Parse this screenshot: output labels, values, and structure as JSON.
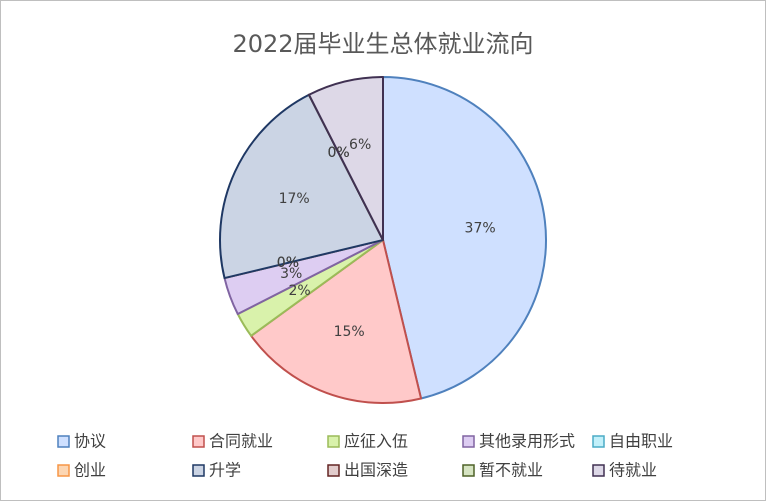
{
  "chart_data": {
    "type": "pie",
    "title": "2022届毕业生总体就业流向",
    "categories": [
      "协议",
      "合同就业",
      "应征入伍",
      "其他录用形式",
      "自由职业",
      "创业",
      "升学",
      "出国深造",
      "暂不就业",
      "待就业"
    ],
    "values": [
      37,
      15,
      2,
      3,
      0,
      0,
      17,
      0,
      0,
      6
    ],
    "colors": [
      "#cfe0ff",
      "#ffc9c9",
      "#d9f2ab",
      "#ddcdf2",
      "#c2f0fa",
      "#fcd6b3",
      "#cbd4e4",
      "#e2cccc",
      "#d6e4c2",
      "#ddd8e7"
    ],
    "edge_colors": [
      "#4f81bd",
      "#c0504d",
      "#9bbb59",
      "#8064a2",
      "#4bacc6",
      "#f79646",
      "#1f3864",
      "#632523",
      "#4f6228",
      "#403152"
    ],
    "value_labels": [
      "37%",
      "15%",
      "2%",
      "3%",
      "0%",
      "0%",
      "17%",
      "0%",
      "0%",
      "6%"
    ],
    "legend": "bottom"
  }
}
